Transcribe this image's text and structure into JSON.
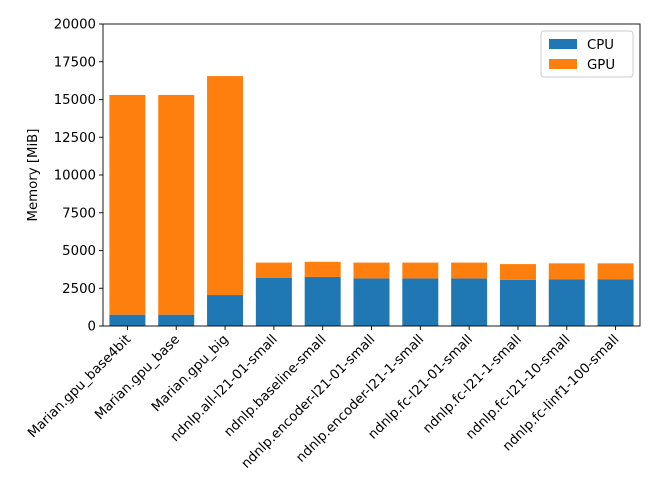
{
  "chart_data": {
    "type": "bar",
    "stacked": true,
    "categories": [
      "Marian.gpu_base4bit",
      "Marian.gpu_base",
      "Marian.gpu_big",
      "ndnlp.all-l21-01-small",
      "ndnlp.baseline-small",
      "ndnlp.encoder-l21-01-small",
      "ndnlp.encoder-l21-1-small",
      "ndnlp.fc-l21-01-small",
      "ndnlp.fc-l21-1-small",
      "ndnlp.fc-l21-10-small",
      "ndnlp.fc-linf1-100-small"
    ],
    "series": [
      {
        "name": "CPU",
        "color": "#1f77b4",
        "values": [
          750,
          750,
          2050,
          3200,
          3250,
          3150,
          3150,
          3150,
          3050,
          3100,
          3100
        ]
      },
      {
        "name": "GPU",
        "color": "#ff7f0e",
        "values": [
          14550,
          14550,
          14500,
          1000,
          1000,
          1050,
          1050,
          1050,
          1050,
          1050,
          1050
        ]
      }
    ],
    "ylabel": "Memory [MiB]",
    "ylim": [
      0,
      20000
    ],
    "yticks": [
      "0",
      "2500",
      "5000",
      "7500",
      "10000",
      "12500",
      "15000",
      "17500",
      "20000"
    ],
    "legend_position": "top-right",
    "grid": false
  }
}
